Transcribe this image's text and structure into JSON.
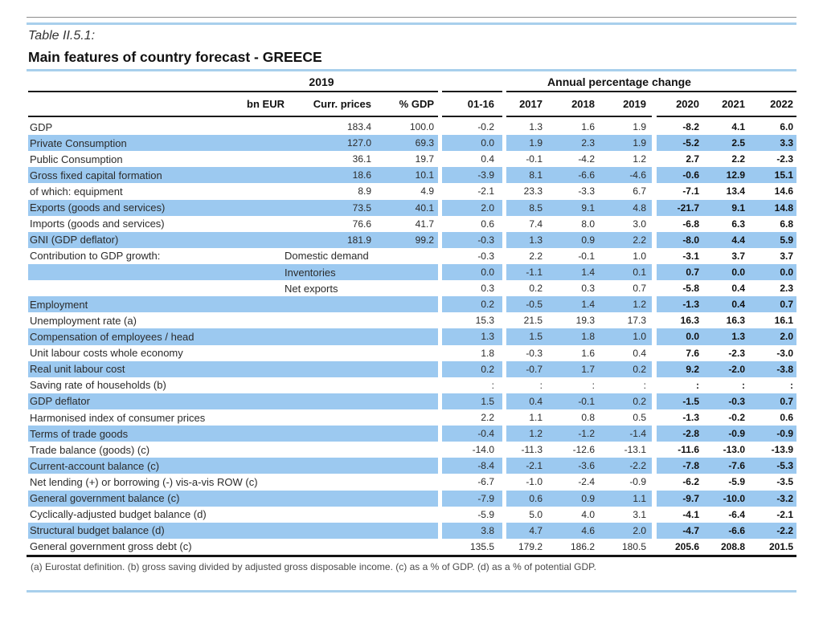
{
  "page": {
    "table_number": "Table II.5.1:",
    "title": "Main features of country forecast - GREECE",
    "footnote": "(a) Eurostat definition.  (b) gross saving divided by adjusted gross disposable income.  (c) as a % of GDP. (d) as a % of potential GDP."
  },
  "header": {
    "group_left": "2019",
    "group_right": "Annual percentage change",
    "columns": [
      "bn EUR",
      "Curr. prices",
      "% GDP",
      "01-16",
      "2017",
      "2018",
      "2019",
      "2020",
      "2021",
      "2022"
    ]
  },
  "colors": {
    "row_highlight": "#9cc9f0",
    "rule_blue": "#a8cfec",
    "rule_gray": "#8c8c8c",
    "rule_black": "#1a1a1a",
    "text": "#2b2b2b"
  },
  "rows": [
    {
      "label": "GDP",
      "sub": "",
      "curr": "183.4",
      "pct_gdp": "100.0",
      "values": [
        "-0.2",
        "1.3",
        "1.6",
        "1.9",
        "-8.2",
        "4.1",
        "6.0"
      ],
      "highlight": false
    },
    {
      "label": "Private Consumption",
      "sub": "",
      "curr": "127.0",
      "pct_gdp": "69.3",
      "values": [
        "0.0",
        "1.9",
        "2.3",
        "1.9",
        "-5.2",
        "2.5",
        "3.3"
      ],
      "highlight": true
    },
    {
      "label": "Public Consumption",
      "sub": "",
      "curr": "36.1",
      "pct_gdp": "19.7",
      "values": [
        "0.4",
        "-0.1",
        "-4.2",
        "1.2",
        "2.7",
        "2.2",
        "-2.3"
      ],
      "highlight": false
    },
    {
      "label": "Gross fixed capital formation",
      "sub": "",
      "curr": "18.6",
      "pct_gdp": "10.1",
      "values": [
        "-3.9",
        "8.1",
        "-6.6",
        "-4.6",
        "-0.6",
        "12.9",
        "15.1"
      ],
      "highlight": true
    },
    {
      "label": "of which: equipment",
      "sub": "",
      "curr": "8.9",
      "pct_gdp": "4.9",
      "values": [
        "-2.1",
        "23.3",
        "-3.3",
        "6.7",
        "-7.1",
        "13.4",
        "14.6"
      ],
      "highlight": false
    },
    {
      "label": "Exports (goods and services)",
      "sub": "",
      "curr": "73.5",
      "pct_gdp": "40.1",
      "values": [
        "2.0",
        "8.5",
        "9.1",
        "4.8",
        "-21.7",
        "9.1",
        "14.8"
      ],
      "highlight": true
    },
    {
      "label": "Imports (goods and services)",
      "sub": "",
      "curr": "76.6",
      "pct_gdp": "41.7",
      "values": [
        "0.6",
        "7.4",
        "8.0",
        "3.0",
        "-6.8",
        "6.3",
        "6.8"
      ],
      "highlight": false
    },
    {
      "label": "GNI (GDP deflator)",
      "sub": "",
      "curr": "181.9",
      "pct_gdp": "99.2",
      "values": [
        "-0.3",
        "1.3",
        "0.9",
        "2.2",
        "-8.0",
        "4.4",
        "5.9"
      ],
      "highlight": true
    },
    {
      "label": "Contribution to GDP growth:",
      "sub": "Domestic demand",
      "curr": "",
      "pct_gdp": "",
      "values": [
        "-0.3",
        "2.2",
        "-0.1",
        "1.0",
        "-3.1",
        "3.7",
        "3.7"
      ],
      "highlight": false
    },
    {
      "label": "",
      "sub": "Inventories",
      "curr": "",
      "pct_gdp": "",
      "values": [
        "0.0",
        "-1.1",
        "1.4",
        "0.1",
        "0.7",
        "0.0",
        "0.0"
      ],
      "highlight": true
    },
    {
      "label": "",
      "sub": "Net exports",
      "curr": "",
      "pct_gdp": "",
      "values": [
        "0.3",
        "0.2",
        "0.3",
        "0.7",
        "-5.8",
        "0.4",
        "2.3"
      ],
      "highlight": false
    },
    {
      "label": "Employment",
      "sub": "",
      "curr": "",
      "pct_gdp": "",
      "values": [
        "0.2",
        "-0.5",
        "1.4",
        "1.2",
        "-1.3",
        "0.4",
        "0.7"
      ],
      "highlight": true
    },
    {
      "label": "Unemployment rate (a)",
      "sub": "",
      "curr": "",
      "pct_gdp": "",
      "values": [
        "15.3",
        "21.5",
        "19.3",
        "17.3",
        "16.3",
        "16.3",
        "16.1"
      ],
      "highlight": false
    },
    {
      "label": "Compensation of employees / head",
      "sub": "",
      "curr": "",
      "pct_gdp": "",
      "values": [
        "1.3",
        "1.5",
        "1.8",
        "1.0",
        "0.0",
        "1.3",
        "2.0"
      ],
      "highlight": true
    },
    {
      "label": "Unit labour costs whole economy",
      "sub": "",
      "curr": "",
      "pct_gdp": "",
      "values": [
        "1.8",
        "-0.3",
        "1.6",
        "0.4",
        "7.6",
        "-2.3",
        "-3.0"
      ],
      "highlight": false
    },
    {
      "label": "Real unit labour cost",
      "sub": "",
      "curr": "",
      "pct_gdp": "",
      "values": [
        "0.2",
        "-0.7",
        "1.7",
        "0.2",
        "9.2",
        "-2.0",
        "-3.8"
      ],
      "highlight": true
    },
    {
      "label": "Saving rate of households (b)",
      "sub": "",
      "curr": "",
      "pct_gdp": "",
      "values": [
        ":",
        ":",
        ":",
        ":",
        ":",
        ":",
        ":"
      ],
      "highlight": false
    },
    {
      "label": "GDP deflator",
      "sub": "",
      "curr": "",
      "pct_gdp": "",
      "values": [
        "1.5",
        "0.4",
        "-0.1",
        "0.2",
        "-1.5",
        "-0.3",
        "0.7"
      ],
      "highlight": true
    },
    {
      "label": "Harmonised index of consumer prices",
      "sub": "",
      "curr": "",
      "pct_gdp": "",
      "values": [
        "2.2",
        "1.1",
        "0.8",
        "0.5",
        "-1.3",
        "-0.2",
        "0.6"
      ],
      "highlight": false
    },
    {
      "label": "Terms of trade goods",
      "sub": "",
      "curr": "",
      "pct_gdp": "",
      "values": [
        "-0.4",
        "1.2",
        "-1.2",
        "-1.4",
        "-2.8",
        "-0.9",
        "-0.9"
      ],
      "highlight": true
    },
    {
      "label": "Trade balance (goods) (c)",
      "sub": "",
      "curr": "",
      "pct_gdp": "",
      "values": [
        "-14.0",
        "-11.3",
        "-12.6",
        "-13.1",
        "-11.6",
        "-13.0",
        "-13.9"
      ],
      "highlight": false
    },
    {
      "label": "Current-account balance (c)",
      "sub": "",
      "curr": "",
      "pct_gdp": "",
      "values": [
        "-8.4",
        "-2.1",
        "-3.6",
        "-2.2",
        "-7.8",
        "-7.6",
        "-5.3"
      ],
      "highlight": true
    },
    {
      "label": "Net lending (+) or borrowing (-) vis-a-vis ROW (c)",
      "sub": "",
      "curr": "",
      "pct_gdp": "",
      "values": [
        "-6.7",
        "-1.0",
        "-2.4",
        "-0.9",
        "-6.2",
        "-5.9",
        "-3.5"
      ],
      "highlight": false
    },
    {
      "label": "General government balance (c)",
      "sub": "",
      "curr": "",
      "pct_gdp": "",
      "values": [
        "-7.9",
        "0.6",
        "0.9",
        "1.1",
        "-9.7",
        "-10.0",
        "-3.2"
      ],
      "highlight": true
    },
    {
      "label": "Cyclically-adjusted budget balance (d)",
      "sub": "",
      "curr": "",
      "pct_gdp": "",
      "values": [
        "-5.9",
        "5.0",
        "4.0",
        "3.1",
        "-4.1",
        "-6.4",
        "-2.1"
      ],
      "highlight": false
    },
    {
      "label": "Structural budget balance (d)",
      "sub": "",
      "curr": "",
      "pct_gdp": "",
      "values": [
        "3.8",
        "4.7",
        "4.6",
        "2.0",
        "-4.7",
        "-6.6",
        "-2.2"
      ],
      "highlight": true
    },
    {
      "label": "General government gross debt (c)",
      "sub": "",
      "curr": "",
      "pct_gdp": "",
      "values": [
        "135.5",
        "179.2",
        "186.2",
        "180.5",
        "205.6",
        "208.8",
        "201.5"
      ],
      "highlight": false
    }
  ]
}
